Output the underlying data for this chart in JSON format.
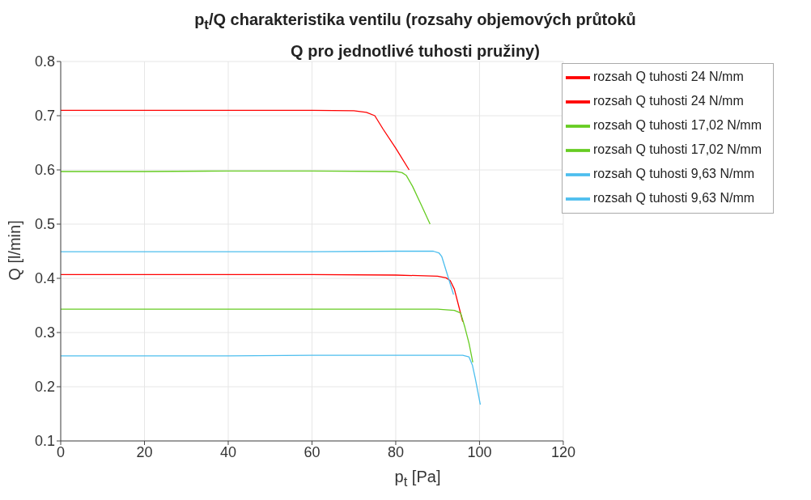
{
  "chart_data": {
    "type": "line",
    "title": "p$_{t}$/Q charakteristika ventilu (rozsahy objemových průtoků Q pro jednotlivé tuhosti pružiny)",
    "xlabel": "p$_{t}$ [Pa]",
    "ylabel": "Q [l/min]",
    "xlim": [
      0,
      120
    ],
    "xticks": [
      0,
      20,
      40,
      60,
      80,
      100,
      120
    ],
    "ylim": [
      0.1,
      0.8
    ],
    "yticks": [
      0.1,
      0.2,
      0.3,
      0.4,
      0.5,
      0.6,
      0.7,
      0.8
    ],
    "grid": true,
    "legend": "top right",
    "series": [
      {
        "name": "rozsah Q tuhosti 24 N/mm",
        "color": "#ff0000",
        "x": [
          0,
          20,
          40,
          60,
          70,
          73,
          75,
          77,
          80,
          83.2
        ],
        "values": [
          0.71,
          0.71,
          0.71,
          0.71,
          0.709,
          0.706,
          0.7,
          0.675,
          0.64,
          0.6
        ]
      },
      {
        "name": "rozsah Q tuhosti 24 N/mm",
        "color": "#ff0000",
        "x": [
          0,
          20,
          40,
          60,
          80,
          90,
          92,
          93,
          94,
          95,
          96
        ],
        "values": [
          0.407,
          0.407,
          0.407,
          0.407,
          0.406,
          0.404,
          0.401,
          0.396,
          0.38,
          0.35,
          0.32
        ]
      },
      {
        "name": "rozsah Q tuhosti 17,02 N/mm",
        "color": "#66cc22",
        "x": [
          0,
          20,
          40,
          60,
          80,
          81.5,
          82.5,
          84,
          86,
          88.2
        ],
        "values": [
          0.597,
          0.597,
          0.598,
          0.598,
          0.597,
          0.595,
          0.59,
          0.57,
          0.537,
          0.5
        ]
      },
      {
        "name": "rozsah Q tuhosti 17,02 N/mm",
        "color": "#66cc22",
        "x": [
          0,
          20,
          40,
          60,
          80,
          90,
          94,
          95.5,
          96.5,
          97.5,
          98.4
        ],
        "values": [
          0.343,
          0.343,
          0.343,
          0.343,
          0.343,
          0.343,
          0.341,
          0.336,
          0.31,
          0.28,
          0.245
        ]
      },
      {
        "name": "rozsah Q tuhosti 9,63 N/mm",
        "color": "#4dbeee",
        "x": [
          0,
          20,
          40,
          60,
          80,
          89,
          90.3,
          91,
          92,
          93,
          93.8
        ],
        "values": [
          0.449,
          0.449,
          0.449,
          0.449,
          0.45,
          0.45,
          0.447,
          0.44,
          0.415,
          0.39,
          0.37
        ]
      },
      {
        "name": "rozsah Q tuhosti 9,63 N/mm",
        "color": "#4dbeee",
        "x": [
          0,
          20,
          40,
          60,
          80,
          90,
          96,
          97.5,
          98.3,
          99,
          100.2
        ],
        "values": [
          0.257,
          0.257,
          0.257,
          0.258,
          0.258,
          0.258,
          0.258,
          0.255,
          0.24,
          0.215,
          0.167
        ]
      }
    ]
  }
}
